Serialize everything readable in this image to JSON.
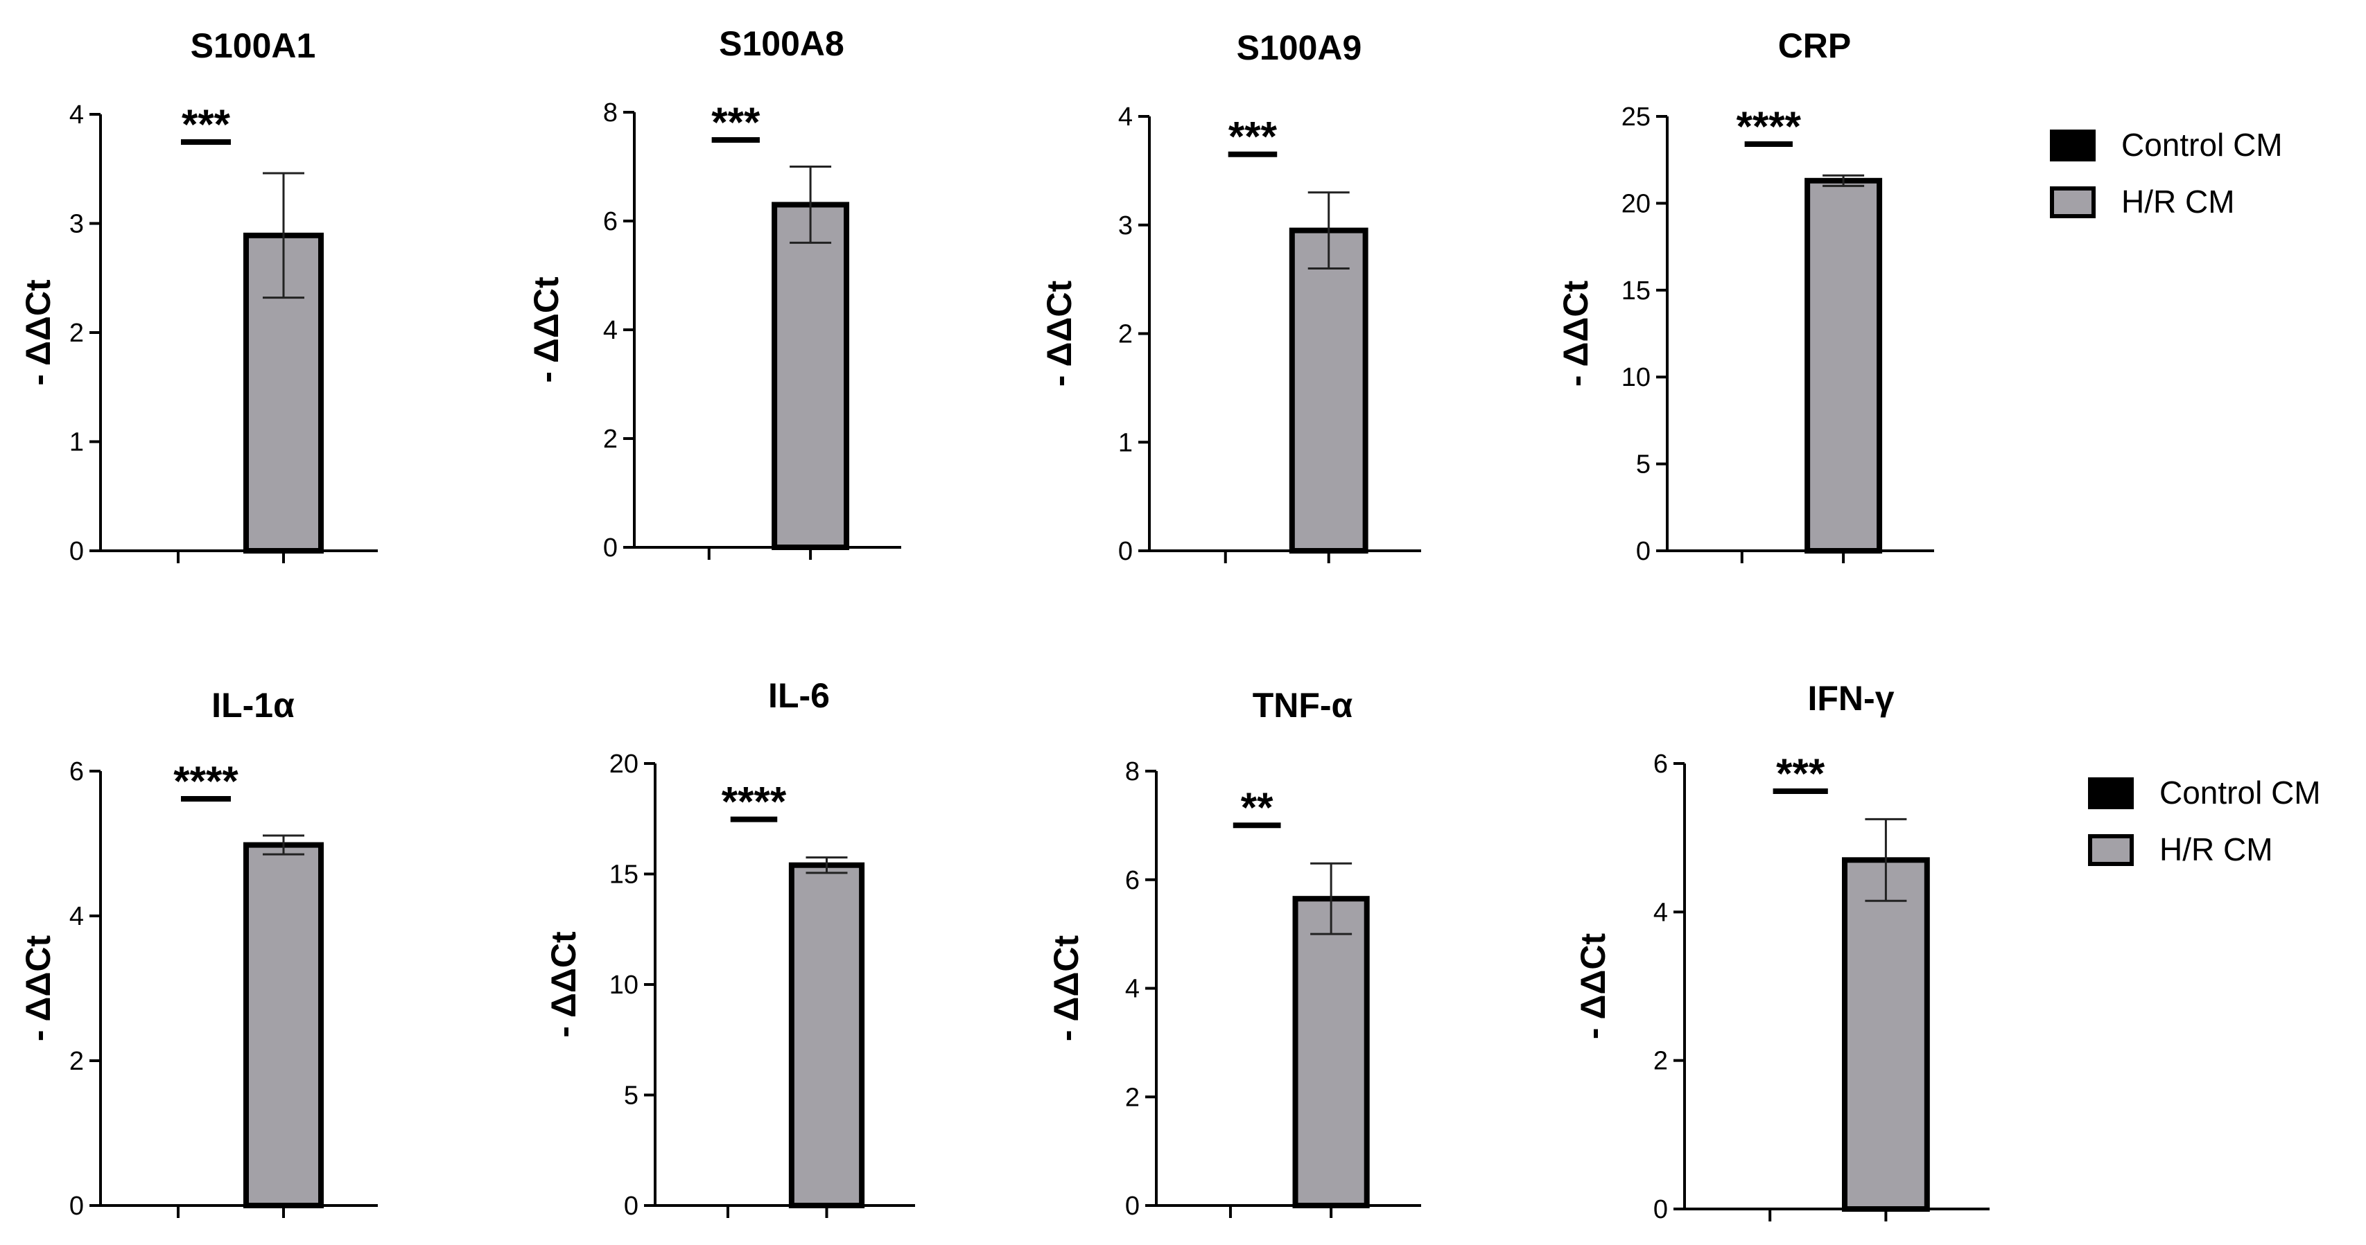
{
  "colors": {
    "control": "#000000",
    "hr": "#a3a1a7",
    "axis": "#000000"
  },
  "legend": {
    "items": [
      {
        "label": "Control CM",
        "color": "#000000"
      },
      {
        "label": "H/R CM",
        "color": "#a3a1a7"
      }
    ]
  },
  "chart_data": [
    {
      "type": "bar",
      "title": "S100A1",
      "ylabel": "- ΔΔCt",
      "categories": [
        "Control CM",
        "H/R CM"
      ],
      "values": [
        0,
        2.89
      ],
      "errors": [
        0,
        0.57
      ],
      "ylim": [
        0,
        4
      ],
      "yticks": [
        "0",
        "1",
        "2",
        "3",
        "4"
      ],
      "significance": "***"
    },
    {
      "type": "bar",
      "title": "S100A8",
      "ylabel": "- ΔΔCt",
      "categories": [
        "Control CM",
        "H/R CM"
      ],
      "values": [
        0,
        6.3
      ],
      "errors": [
        0,
        0.7
      ],
      "ylim": [
        0,
        8
      ],
      "yticks": [
        "0",
        "2",
        "4",
        "6",
        "8"
      ],
      "significance": "***"
    },
    {
      "type": "bar",
      "title": "S100A9",
      "ylabel": "- ΔΔCt",
      "categories": [
        "Control CM",
        "H/R CM"
      ],
      "values": [
        0,
        2.95
      ],
      "errors": [
        0,
        0.35
      ],
      "ylim": [
        0,
        4
      ],
      "yticks": [
        "0",
        "1",
        "2",
        "3",
        "4"
      ],
      "significance": "***"
    },
    {
      "type": "bar",
      "title": "CRP",
      "ylabel": "- ΔΔCt",
      "categories": [
        "Control CM",
        "H/R CM"
      ],
      "values": [
        0,
        21.3
      ],
      "errors": [
        0,
        0.3
      ],
      "ylim": [
        0,
        25
      ],
      "yticks": [
        "0",
        "5",
        "10",
        "15",
        "20",
        "25"
      ],
      "significance": "****"
    },
    {
      "type": "bar",
      "title": "IL-1α",
      "ylabel": "- ΔΔCt",
      "categories": [
        "Control CM",
        "H/R CM"
      ],
      "values": [
        0,
        4.98
      ],
      "errors": [
        0,
        0.13
      ],
      "ylim": [
        0,
        6
      ],
      "yticks": [
        "0",
        "2",
        "4",
        "6"
      ],
      "significance": "****"
    },
    {
      "type": "bar",
      "title": "IL-6",
      "ylabel": "- ΔΔCt",
      "categories": [
        "Control CM",
        "H/R CM"
      ],
      "values": [
        0,
        15.4
      ],
      "errors": [
        0,
        0.35
      ],
      "ylim": [
        0,
        20
      ],
      "yticks": [
        "0",
        "5",
        "10",
        "15",
        "20"
      ],
      "significance": "****"
    },
    {
      "type": "bar",
      "title": "TNF-α",
      "ylabel": "- ΔΔCt",
      "categories": [
        "Control CM",
        "H/R CM"
      ],
      "values": [
        0,
        5.65
      ],
      "errors": [
        0,
        0.65
      ],
      "ylim": [
        0,
        8
      ],
      "yticks": [
        "0",
        "2",
        "4",
        "6",
        "8"
      ],
      "significance": "**"
    },
    {
      "type": "bar",
      "title": "IFN-γ",
      "ylabel": "- ΔΔCt",
      "categories": [
        "Control CM",
        "H/R CM"
      ],
      "values": [
        0,
        4.7
      ],
      "errors": [
        0,
        0.55
      ],
      "ylim": [
        0,
        6
      ],
      "yticks": [
        "0",
        "2",
        "4",
        "6"
      ],
      "significance": "***"
    }
  ]
}
